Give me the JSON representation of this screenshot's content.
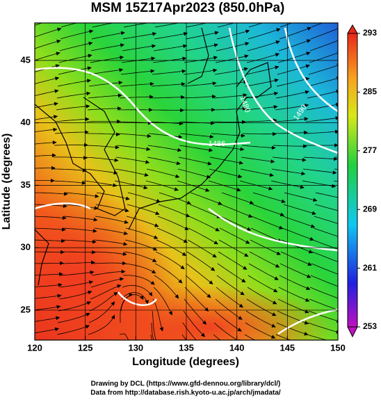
{
  "map": {
    "title": "MSM 15Z17Apr2023 (850.0hPa)",
    "xlabel": "Longitude (degrees)",
    "ylabel": "Latitude  (degrees)",
    "xlim": [
      120,
      150
    ],
    "ylim": [
      22.6,
      48
    ],
    "xticks": [
      120,
      125,
      130,
      135,
      140,
      145,
      150
    ],
    "yticks": [
      25,
      30,
      35,
      40,
      45
    ],
    "colorbar": {
      "lim": [
        253,
        293
      ],
      "ticks": [
        253,
        261,
        269,
        277,
        285,
        293
      ]
    },
    "contour_labels": [
      "1480",
      "1490",
      "1486"
    ],
    "credits": [
      "Drawing by DCL (https://www.gfd-dennou.org/library/dcl/)",
      "Data from http://database.rish.kyoto-u.ac.jp/arch/jmadata/"
    ]
  }
}
